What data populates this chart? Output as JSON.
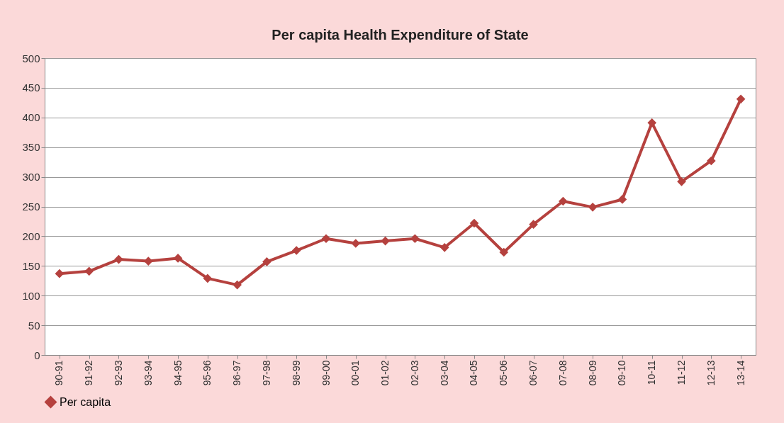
{
  "chart_data": {
    "type": "line",
    "title": "Per capita Health Expenditure  of State",
    "categories": [
      "90-91",
      "91-92",
      "92-93",
      "93-94",
      "94-95",
      "95-96",
      "96-97",
      "97-98",
      "98-99",
      "99-00",
      "00-01",
      "01-02",
      "02-03",
      "03-04",
      "04-05",
      "05-06",
      "06-07",
      "07-08",
      "08-09",
      "09-10",
      "10-11",
      "11-12",
      "12-13",
      "13-14"
    ],
    "series": [
      {
        "name": "Per capita",
        "color": "#b5413e",
        "values": [
          137,
          141,
          161,
          158,
          163,
          129,
          118,
          157,
          176,
          196,
          188,
          192,
          196,
          181,
          222,
          173,
          220,
          259,
          249,
          262,
          391,
          292,
          327,
          431
        ]
      }
    ],
    "ylim": [
      0,
      500
    ],
    "yticks": [
      0,
      50,
      100,
      150,
      200,
      250,
      300,
      350,
      400,
      450,
      500
    ],
    "grid": "y",
    "legend": "bottom",
    "marker": "diamond",
    "line_style": "solid"
  }
}
